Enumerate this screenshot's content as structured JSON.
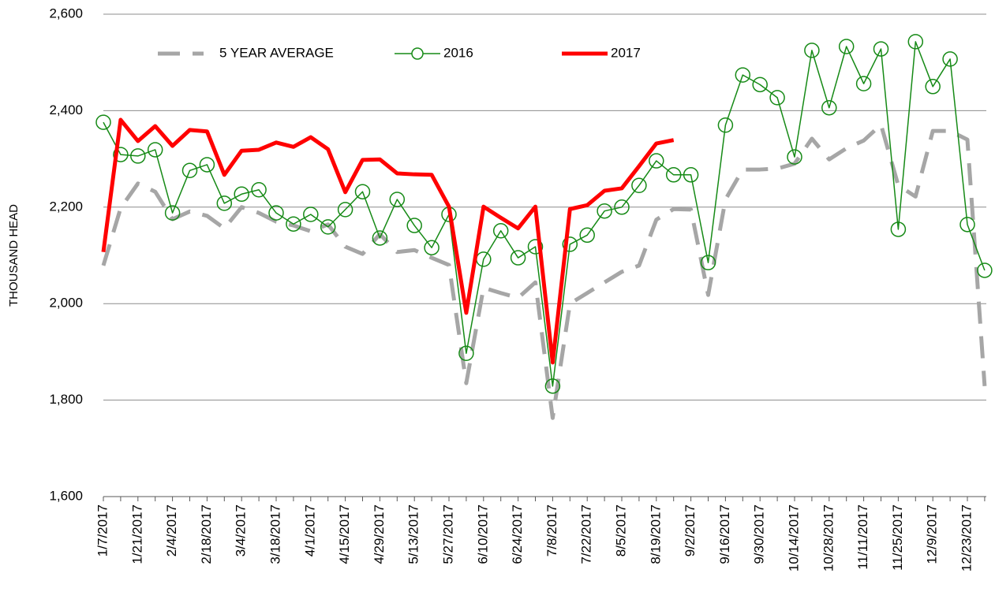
{
  "chart_data": {
    "type": "line",
    "y_label": "THOUSAND HEAD",
    "categories": [
      "1/7/2017",
      null,
      "1/21/2017",
      null,
      "2/4/2017",
      null,
      "2/18/2017",
      null,
      "3/4/2017",
      null,
      "3/18/2017",
      null,
      "4/1/2017",
      null,
      "4/15/2017",
      null,
      "4/29/2017",
      null,
      "5/13/2017",
      null,
      "5/27/2017",
      null,
      "6/10/2017",
      null,
      "6/24/2017",
      null,
      "7/8/2017",
      null,
      "7/22/2017",
      null,
      "8/5/2017",
      null,
      "8/19/2017",
      null,
      "9/2/2017",
      null,
      "9/16/2017",
      null,
      "9/30/2017",
      null,
      "10/14/2017",
      null,
      "10/28/2017",
      null,
      "11/11/2017",
      null,
      "11/25/2017",
      null,
      "12/9/2017",
      null,
      "12/23/2017",
      null
    ],
    "series": [
      {
        "name": "5 YEAR AVERAGE",
        "color": "#a6a6a6",
        "style": "dashed",
        "values": [
          2079,
          2198,
          2249,
          2232,
          2175,
          2191,
          2182,
          2156,
          2200,
          2188,
          2170,
          2162,
          2150,
          2164,
          2118,
          2103,
          2144,
          2107,
          2111,
          2095,
          2080,
          1835,
          2033,
          2022,
          2012,
          2044,
          1763,
          2000,
          2022,
          2044,
          2066,
          2079,
          2174,
          2196,
          2195,
          2018,
          2216,
          2278,
          2278,
          2280,
          2290,
          2342,
          2299,
          2322,
          2338,
          2371,
          2245,
          2222,
          2358,
          2358,
          2340,
          1829
        ]
      },
      {
        "name": "2016",
        "color": "#168a16",
        "style": "solid",
        "marker": "circle",
        "values": [
          2376,
          2309,
          2306,
          2319,
          2188,
          2276,
          2288,
          2208,
          2227,
          2236,
          2188,
          2165,
          2185,
          2159,
          2195,
          2232,
          2136,
          2216,
          2162,
          2116,
          2185,
          1897,
          2092,
          2151,
          2095,
          2118,
          1829,
          2123,
          2142,
          2192,
          2200,
          2245,
          2296,
          2267,
          2267,
          2085,
          2370,
          2474,
          2454,
          2427,
          2304,
          2525,
          2406,
          2533,
          2456,
          2528,
          2154,
          2543,
          2450,
          2507,
          2164,
          2069
        ]
      },
      {
        "name": "2017",
        "color": "#ff0000",
        "style": "solid",
        "values": [
          2107,
          2381,
          2337,
          2368,
          2327,
          2360,
          2357,
          2267,
          2317,
          2319,
          2334,
          2325,
          2345,
          2320,
          2231,
          2298,
          2299,
          2270,
          2268,
          2267,
          2201,
          1981,
          2201,
          2178,
          2156,
          2201,
          1878,
          2196,
          2204,
          2234,
          2239,
          2285,
          2332,
          2339,
          null,
          null,
          null,
          null,
          null,
          null,
          null,
          null,
          null,
          null,
          null,
          null,
          null,
          null,
          null,
          null,
          null,
          null
        ]
      }
    ],
    "ylim": [
      1600,
      2600
    ],
    "yticks": [
      {
        "value": 1600,
        "label": "1,600"
      },
      {
        "value": 1800,
        "label": "1,800"
      },
      {
        "value": 2000,
        "label": "2,000"
      },
      {
        "value": 2200,
        "label": "2,200"
      },
      {
        "value": 2400,
        "label": "2,400"
      },
      {
        "value": 2600,
        "label": "2,600"
      }
    ],
    "grid": true,
    "legend": "top"
  }
}
